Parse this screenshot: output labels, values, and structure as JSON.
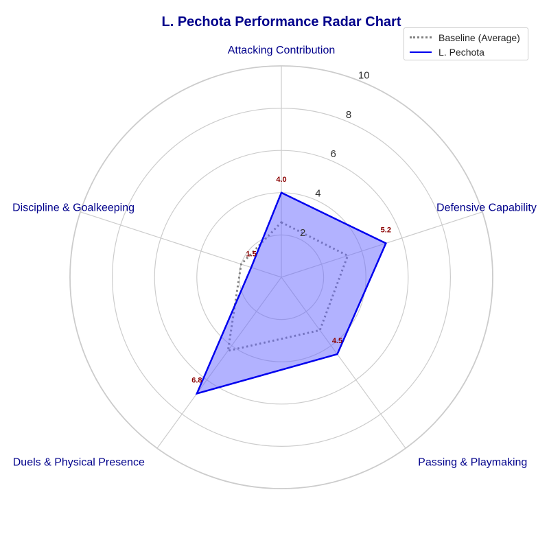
{
  "chart_data": {
    "type": "radar",
    "title": "L. Pechota Performance Radar Chart",
    "axes": [
      "Attacking Contribution",
      "Defensive Capability",
      "Passing & Playmaking",
      "Duels & Physical Presence",
      "Discipline & Goalkeeping"
    ],
    "radial_range": [
      0,
      10
    ],
    "radial_ticks": [
      "2",
      "4",
      "6",
      "8",
      "10"
    ],
    "series": [
      {
        "name": "Baseline (Average)",
        "values": [
          2.6,
          3.3,
          3.1,
          4.3,
          2.0
        ],
        "style": "dotted",
        "color": "#808080"
      },
      {
        "name": "L. Pechota",
        "values": [
          4.0,
          5.2,
          4.5,
          6.8,
          1.5
        ],
        "value_labels": [
          "4.0",
          "5.2",
          "4.5",
          "6.8",
          "1.5"
        ],
        "style": "solid",
        "color": "#0000ee",
        "fill": "#6666ff"
      }
    ],
    "grid": true,
    "legend_position": "top-right",
    "colors": {
      "title": "#00008b",
      "axis_label": "#00008b",
      "value_label": "#8b0000",
      "grid": "#cccccc",
      "tick": "#333333"
    }
  }
}
